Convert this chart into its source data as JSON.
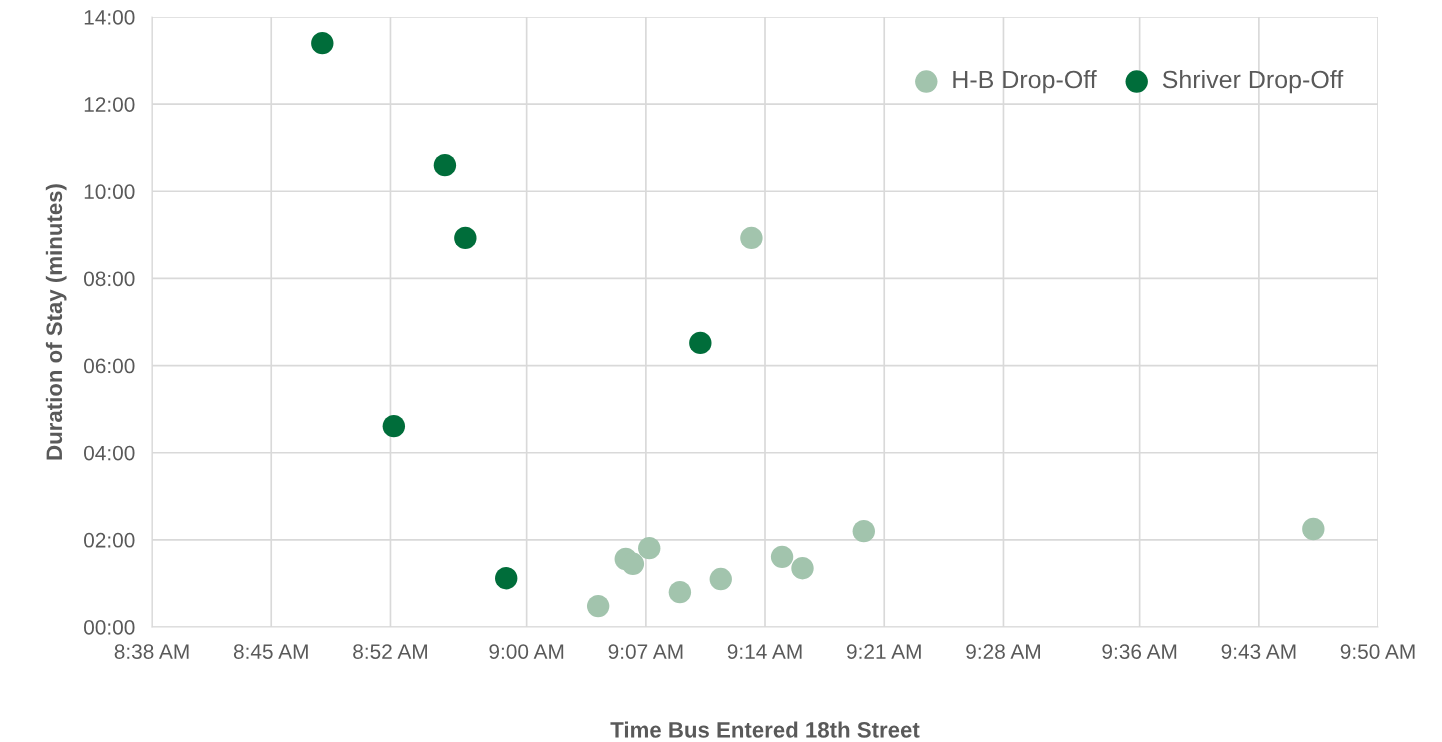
{
  "chart_data": {
    "type": "scatter",
    "xlabel": "Time Bus Entered 18th Street",
    "ylabel": "Duration of Stay (minutes)",
    "xlim": [
      8.6333,
      9.8333
    ],
    "xticks": [
      {
        "value": 8.6333,
        "label": "8:38 AM"
      },
      {
        "value": 8.75,
        "label": "8:45 AM"
      },
      {
        "value": 8.8667,
        "label": "8:52 AM"
      },
      {
        "value": 9.0,
        "label": "9:00 AM"
      },
      {
        "value": 9.1167,
        "label": "9:07 AM"
      },
      {
        "value": 9.2333,
        "label": "9:14 AM"
      },
      {
        "value": 9.35,
        "label": "9:21 AM"
      },
      {
        "value": 9.4667,
        "label": "9:28 AM"
      },
      {
        "value": 9.6,
        "label": "9:36 AM"
      },
      {
        "value": 9.7167,
        "label": "9:43 AM"
      },
      {
        "value": 9.8333,
        "label": "9:50 AM"
      }
    ],
    "ylim": [
      0,
      14
    ],
    "yticks": [
      {
        "value": 0,
        "label": "00:00"
      },
      {
        "value": 2,
        "label": "02:00"
      },
      {
        "value": 4,
        "label": "04:00"
      },
      {
        "value": 6,
        "label": "06:00"
      },
      {
        "value": 8,
        "label": "08:00"
      },
      {
        "value": 10,
        "label": "10:00"
      },
      {
        "value": 12,
        "label": "12:00"
      },
      {
        "value": 14,
        "label": "14:00"
      }
    ],
    "grid": true,
    "legend": "top right",
    "marker": "circle",
    "series": [
      {
        "name": "H-B Drop-Off",
        "color": "#a2c4ad",
        "x": [
          9.07,
          9.097,
          9.104,
          9.12,
          9.15,
          9.19,
          9.22,
          9.25,
          9.27,
          9.33,
          9.77
        ],
        "values": [
          0.48,
          1.56,
          1.45,
          1.81,
          0.8,
          1.1,
          8.93,
          1.61,
          1.35,
          2.2,
          2.25
        ]
      },
      {
        "name": "Shriver Drop-Off",
        "color": "#006d3a",
        "x": [
          8.8,
          8.87,
          8.92,
          8.94,
          8.98,
          9.17
        ],
        "values": [
          13.4,
          4.61,
          10.6,
          8.93,
          1.12,
          6.52
        ]
      }
    ]
  }
}
